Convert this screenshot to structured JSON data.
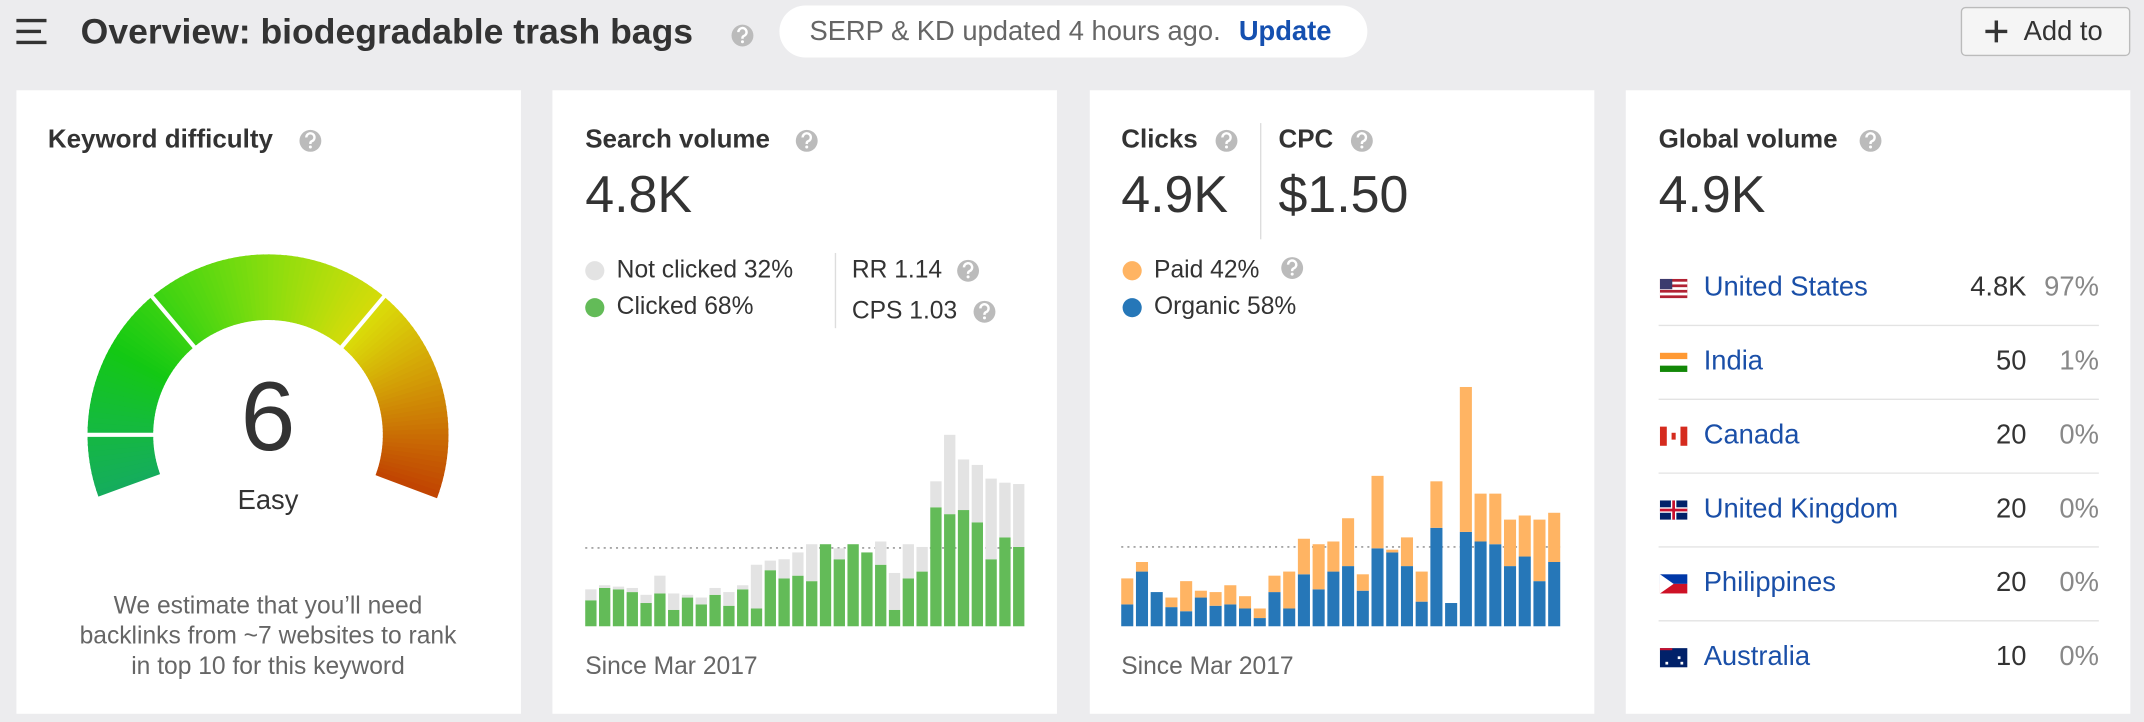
{
  "header": {
    "title": "Overview: biodegradable trash bags",
    "notice": "SERP & KD updated 4 hours ago.",
    "notice_action": "Update",
    "button": "Add to"
  },
  "keyword_difficulty": {
    "title": "Keyword difficulty",
    "score": 6,
    "rating": "Easy",
    "note": [
      "We estimate that you’ll need",
      "backlinks from ~7 websites to rank",
      "in top 10 for this keyword"
    ]
  },
  "search_volume": {
    "title": "Search volume",
    "value": "4.8K",
    "rr": "RR 1.14",
    "cps": "CPS 1.03",
    "footer": "Since Mar 2017"
  },
  "clicks": {
    "title": "Clicks",
    "value": "4.9K",
    "cpc_title": "CPC",
    "cpc_value": "$1.50",
    "footer": "Since Mar 2017"
  },
  "global_volume": {
    "title": "Global volume",
    "value": "4.9K",
    "rows": [
      {
        "country": "United States",
        "volume": "4.8K",
        "share": "97%"
      },
      {
        "country": "India",
        "volume": "50",
        "share": "1%"
      },
      {
        "country": "Canada",
        "volume": "20",
        "share": "0%"
      },
      {
        "country": "United Kingdom",
        "volume": "20",
        "share": "0%"
      },
      {
        "country": "Philippines",
        "volume": "20",
        "share": "0%"
      },
      {
        "country": "Australia",
        "volume": "10",
        "share": "0%"
      }
    ]
  },
  "chart_data": [
    {
      "type": "bar",
      "stacked": true,
      "series": [
        {
          "name": "Not clicked",
          "share": "32%",
          "color": "#e3e3e3",
          "values": [
            8,
            2,
            2,
            3,
            6,
            13,
            12,
            2,
            5,
            5,
            10,
            3,
            32,
            7,
            14,
            17,
            27,
            0,
            8,
            0,
            0,
            17,
            27,
            25,
            18,
            19,
            58,
            37,
            42,
            59,
            40,
            46
          ]
        },
        {
          "name": "Clicked",
          "share": "68%",
          "color": "#63bb58",
          "values": [
            19,
            28,
            27,
            25,
            17,
            24,
            12,
            21,
            16,
            23,
            15,
            27,
            13,
            41,
            35,
            37,
            33,
            60,
            49,
            60,
            54,
            45,
            12,
            35,
            40,
            87,
            82,
            85,
            76,
            49,
            65,
            58
          ]
        }
      ]
    },
    {
      "type": "bar",
      "stacked": true,
      "series": [
        {
          "name": "Paid",
          "share": "42%",
          "color": "#ffb463",
          "values": [
            19,
            7,
            0,
            7,
            22,
            5,
            10,
            14,
            9,
            7,
            12,
            27,
            26,
            33,
            22,
            35,
            12,
            53,
            2,
            21,
            22,
            34,
            0,
            106,
            35,
            37,
            34,
            30,
            45,
            36
          ]
        },
        {
          "name": "Organic",
          "share": "58%",
          "color": "#2677b8",
          "values": [
            16,
            40,
            25,
            14,
            11,
            21,
            15,
            16,
            13,
            6,
            25,
            13,
            38,
            27,
            40,
            44,
            26,
            57,
            54,
            44,
            18,
            72,
            17,
            69,
            62,
            60,
            44,
            51,
            33,
            47
          ]
        }
      ]
    }
  ]
}
